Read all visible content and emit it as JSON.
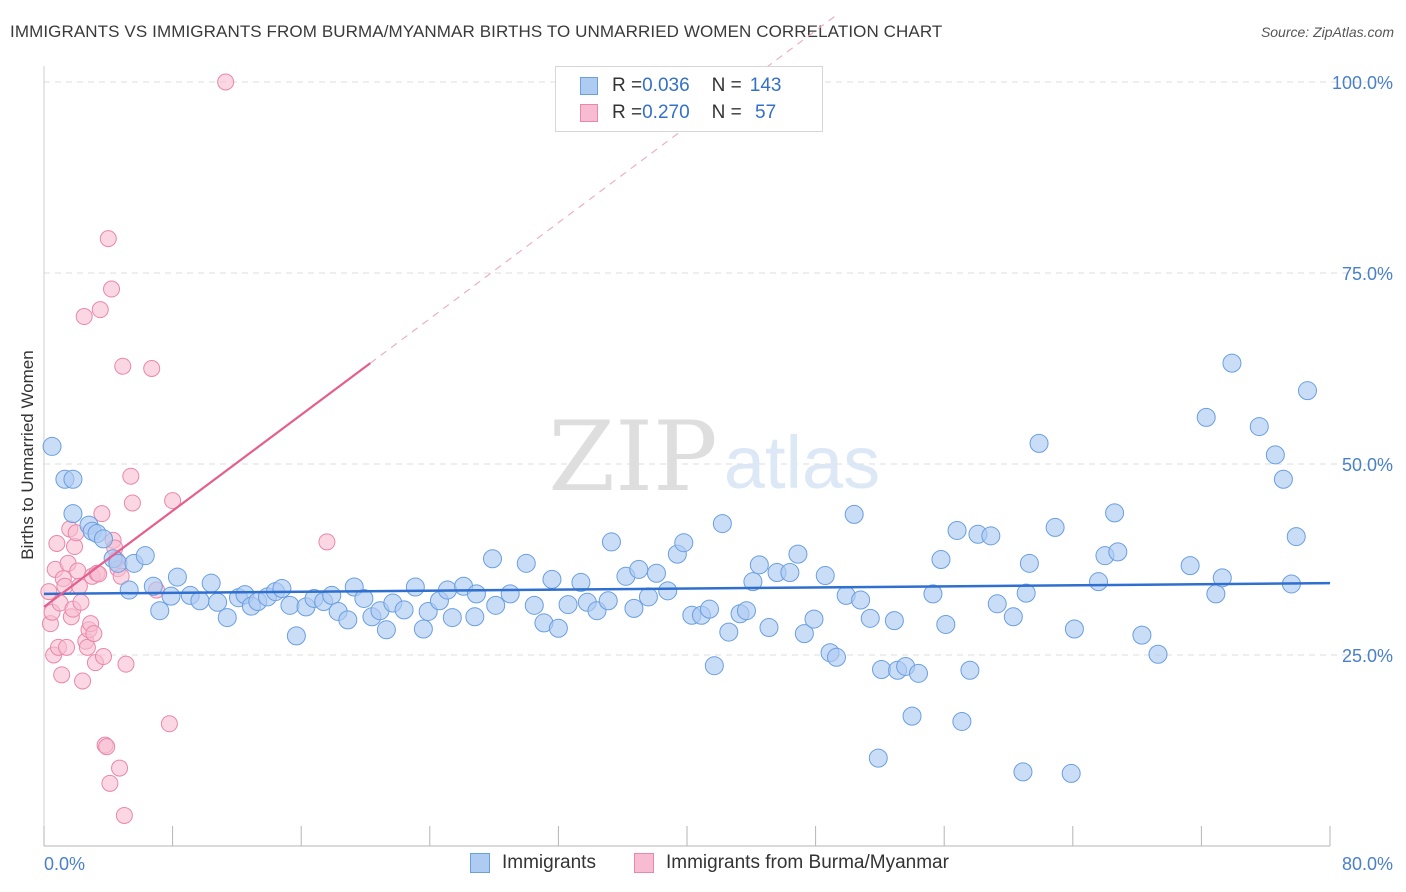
{
  "title": "IMMIGRANTS VS IMMIGRANTS FROM BURMA/MYANMAR BIRTHS TO UNMARRIED WOMEN CORRELATION CHART",
  "source": "Source: ZipAtlas.com",
  "watermark": {
    "zip": "ZIP",
    "atlas": "atlas"
  },
  "colors": {
    "blue_fill": "#aecbf2",
    "blue_stroke": "#6a9fe0",
    "blue_line": "#2f6fcf",
    "pink_fill": "#f7bcd1",
    "pink_stroke": "#ea87aa",
    "pink_line": "#e45f8e",
    "tick_text": "#4a80c9",
    "grid": "#dcdcdc"
  },
  "legend": {
    "rows": [
      {
        "r_label": "R = ",
        "r_value": "0.036",
        "n_label": "N = ",
        "n_value": "143",
        "series": "Immigrants"
      },
      {
        "r_label": "R = ",
        "r_value": "0.270",
        "n_label": "N = ",
        "n_value": " 57",
        "series": "Immigrants from Burma/Myanmar"
      }
    ]
  },
  "chart_data": {
    "type": "scatter",
    "title": "IMMIGRANTS VS IMMIGRANTS FROM BURMA/MYANMAR BIRTHS TO UNMARRIED WOMEN CORRELATION CHART",
    "xlabel": "",
    "ylabel": "Births to Unmarried Women",
    "xlim": [
      0,
      80
    ],
    "ylim": [
      0,
      100
    ],
    "x_tick_labels": [
      "0.0%",
      "80.0%"
    ],
    "y_ticks": [
      25,
      50,
      75,
      100
    ],
    "y_tick_labels": [
      "25.0%",
      "50.0%",
      "75.0%",
      "100.0%"
    ],
    "grid": true,
    "legend_position": "bottom",
    "series": [
      {
        "name": "Immigrants",
        "color": "#6a9fe0",
        "r": 0.036,
        "n": 143,
        "trend": {
          "x": [
            0,
            80
          ],
          "y": [
            33.0,
            34.4
          ]
        },
        "points": [
          [
            0.5,
            52.3
          ],
          [
            1.3,
            48.0
          ],
          [
            1.8,
            48.0
          ],
          [
            1.8,
            43.5
          ],
          [
            2.8,
            42.0
          ],
          [
            3.0,
            41.2
          ],
          [
            3.3,
            40.9
          ],
          [
            3.7,
            40.2
          ],
          [
            4.3,
            37.6
          ],
          [
            4.6,
            37.0
          ],
          [
            5.6,
            37.0
          ],
          [
            6.3,
            38.0
          ],
          [
            5.3,
            33.5
          ],
          [
            6.8,
            34.0
          ],
          [
            7.2,
            30.8
          ],
          [
            7.9,
            32.7
          ],
          [
            8.3,
            35.2
          ],
          [
            9.1,
            32.8
          ],
          [
            9.7,
            32.1
          ],
          [
            10.4,
            34.4
          ],
          [
            10.8,
            31.9
          ],
          [
            11.4,
            29.9
          ],
          [
            12.1,
            32.5
          ],
          [
            12.5,
            32.9
          ],
          [
            12.9,
            31.4
          ],
          [
            13.3,
            32.0
          ],
          [
            13.9,
            32.6
          ],
          [
            14.4,
            33.3
          ],
          [
            14.8,
            33.7
          ],
          [
            15.3,
            31.5
          ],
          [
            15.7,
            27.5
          ],
          [
            16.3,
            31.3
          ],
          [
            16.8,
            32.4
          ],
          [
            17.4,
            32.0
          ],
          [
            17.9,
            32.8
          ],
          [
            18.3,
            30.7
          ],
          [
            18.9,
            29.6
          ],
          [
            19.3,
            33.9
          ],
          [
            19.9,
            32.4
          ],
          [
            20.4,
            30.0
          ],
          [
            20.9,
            30.8
          ],
          [
            21.3,
            28.3
          ],
          [
            21.7,
            31.8
          ],
          [
            22.4,
            30.9
          ],
          [
            23.1,
            33.9
          ],
          [
            23.6,
            28.4
          ],
          [
            23.9,
            30.7
          ],
          [
            24.6,
            32.1
          ],
          [
            25.1,
            33.5
          ],
          [
            25.4,
            29.9
          ],
          [
            26.1,
            34.0
          ],
          [
            26.8,
            30.0
          ],
          [
            26.9,
            33.0
          ],
          [
            27.9,
            37.6
          ],
          [
            28.1,
            31.5
          ],
          [
            29.0,
            33.0
          ],
          [
            30.0,
            37.0
          ],
          [
            30.5,
            31.5
          ],
          [
            31.1,
            29.2
          ],
          [
            31.6,
            34.9
          ],
          [
            32.0,
            28.5
          ],
          [
            32.6,
            31.6
          ],
          [
            33.4,
            34.5
          ],
          [
            33.8,
            31.9
          ],
          [
            34.4,
            30.8
          ],
          [
            35.1,
            32.1
          ],
          [
            35.3,
            39.8
          ],
          [
            36.2,
            35.3
          ],
          [
            36.7,
            31.1
          ],
          [
            37.0,
            36.2
          ],
          [
            37.6,
            32.6
          ],
          [
            38.1,
            35.7
          ],
          [
            38.8,
            33.4
          ],
          [
            39.4,
            38.2
          ],
          [
            39.8,
            39.7
          ],
          [
            40.3,
            30.2
          ],
          [
            40.9,
            30.2
          ],
          [
            41.4,
            31.0
          ],
          [
            41.7,
            23.6
          ],
          [
            42.2,
            42.2
          ],
          [
            42.6,
            28.0
          ],
          [
            43.3,
            30.4
          ],
          [
            43.7,
            30.8
          ],
          [
            44.1,
            34.6
          ],
          [
            44.5,
            36.8
          ],
          [
            45.1,
            28.6
          ],
          [
            45.6,
            35.8
          ],
          [
            46.4,
            35.8
          ],
          [
            46.9,
            38.2
          ],
          [
            47.3,
            27.8
          ],
          [
            47.9,
            29.7
          ],
          [
            48.6,
            35.4
          ],
          [
            48.9,
            25.3
          ],
          [
            49.3,
            24.7
          ],
          [
            49.9,
            32.8
          ],
          [
            50.4,
            43.4
          ],
          [
            50.8,
            32.2
          ],
          [
            51.4,
            29.8
          ],
          [
            51.9,
            11.5
          ],
          [
            52.1,
            23.1
          ],
          [
            52.9,
            29.5
          ],
          [
            53.1,
            23.0
          ],
          [
            53.6,
            23.5
          ],
          [
            54.0,
            17.0
          ],
          [
            54.4,
            22.6
          ],
          [
            55.3,
            33.0
          ],
          [
            55.8,
            37.5
          ],
          [
            56.1,
            29.0
          ],
          [
            56.8,
            41.3
          ],
          [
            57.1,
            16.3
          ],
          [
            57.6,
            23.0
          ],
          [
            58.1,
            40.8
          ],
          [
            58.9,
            40.6
          ],
          [
            59.3,
            31.7
          ],
          [
            60.3,
            30.0
          ],
          [
            60.9,
            9.7
          ],
          [
            61.1,
            33.1
          ],
          [
            61.3,
            37.0
          ],
          [
            61.9,
            52.7
          ],
          [
            62.9,
            41.7
          ],
          [
            63.9,
            9.5
          ],
          [
            64.1,
            28.4
          ],
          [
            65.6,
            34.6
          ],
          [
            66.0,
            38.0
          ],
          [
            66.6,
            43.6
          ],
          [
            66.8,
            38.5
          ],
          [
            68.3,
            27.6
          ],
          [
            69.3,
            25.1
          ],
          [
            71.3,
            36.7
          ],
          [
            72.3,
            56.1
          ],
          [
            72.9,
            33.0
          ],
          [
            73.3,
            35.1
          ],
          [
            73.9,
            63.2
          ],
          [
            75.6,
            54.9
          ],
          [
            76.6,
            51.2
          ],
          [
            77.1,
            48.0
          ],
          [
            77.6,
            34.3
          ],
          [
            77.9,
            40.5
          ],
          [
            78.6,
            59.6
          ]
        ]
      },
      {
        "name": "Immigrants from Burma/Myanmar",
        "color": "#ea87aa",
        "r": 0.27,
        "n": 57,
        "trend": {
          "x": [
            0,
            20.3
          ],
          "y": [
            31.3,
            63.2
          ],
          "dashed_x": [
            20.3,
            80
          ],
          "dashed_y": [
            63.2,
            157.0
          ]
        },
        "points": [
          [
            0.3,
            33.3
          ],
          [
            0.4,
            29.1
          ],
          [
            0.5,
            30.6
          ],
          [
            0.6,
            25.0
          ],
          [
            0.7,
            36.2
          ],
          [
            0.8,
            39.6
          ],
          [
            0.9,
            26.0
          ],
          [
            1.0,
            31.8
          ],
          [
            1.1,
            22.4
          ],
          [
            1.2,
            35.0
          ],
          [
            1.3,
            34.0
          ],
          [
            1.4,
            26.0
          ],
          [
            1.5,
            37.0
          ],
          [
            1.6,
            41.5
          ],
          [
            1.7,
            30.0
          ],
          [
            1.8,
            31.0
          ],
          [
            1.9,
            39.2
          ],
          [
            2.0,
            41.0
          ],
          [
            2.1,
            36.0
          ],
          [
            2.2,
            34.0
          ],
          [
            2.3,
            31.9
          ],
          [
            2.4,
            21.6
          ],
          [
            2.5,
            69.3
          ],
          [
            2.6,
            26.8
          ],
          [
            2.7,
            26.0
          ],
          [
            2.8,
            28.3
          ],
          [
            2.9,
            29.1
          ],
          [
            3.0,
            35.3
          ],
          [
            3.1,
            27.8
          ],
          [
            3.2,
            24.0
          ],
          [
            3.3,
            35.7
          ],
          [
            3.4,
            35.6
          ],
          [
            3.5,
            70.2
          ],
          [
            3.6,
            43.5
          ],
          [
            3.7,
            24.8
          ],
          [
            3.8,
            13.2
          ],
          [
            3.9,
            13.0
          ],
          [
            4.0,
            79.5
          ],
          [
            4.1,
            8.2
          ],
          [
            4.2,
            72.9
          ],
          [
            4.3,
            40.0
          ],
          [
            4.4,
            39.0
          ],
          [
            4.5,
            37.5
          ],
          [
            4.6,
            36.3
          ],
          [
            4.7,
            10.2
          ],
          [
            4.8,
            35.3
          ],
          [
            4.9,
            62.8
          ],
          [
            5.0,
            4.0
          ],
          [
            5.1,
            23.8
          ],
          [
            5.4,
            48.4
          ],
          [
            5.5,
            44.9
          ],
          [
            6.7,
            62.5
          ],
          [
            7.0,
            33.5
          ],
          [
            7.8,
            16.0
          ],
          [
            8.0,
            45.2
          ],
          [
            17.6,
            39.8
          ],
          [
            11.3,
            100.0
          ]
        ]
      }
    ]
  }
}
